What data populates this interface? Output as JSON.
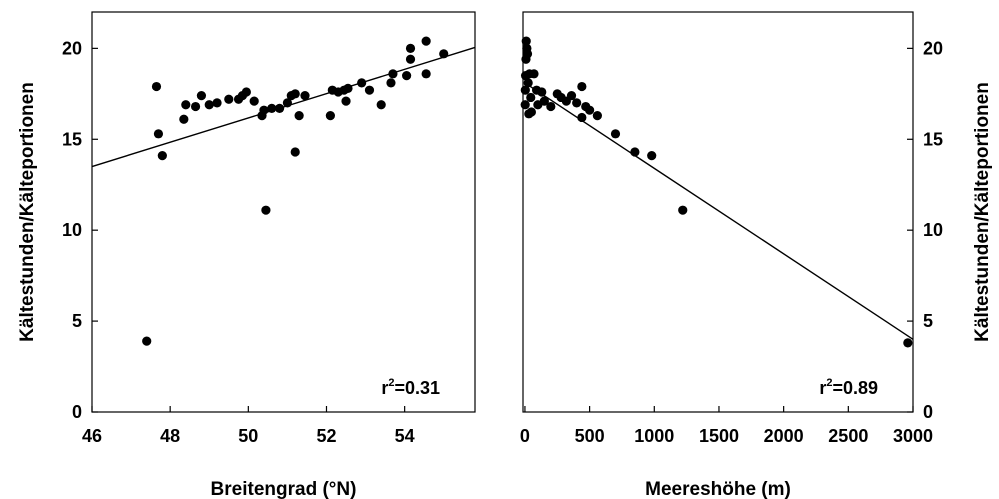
{
  "chart_data": [
    {
      "id": "left",
      "type": "scatter",
      "xlabel": "Breitengrad (°N)",
      "ylabel": "Kältestunden/Kälteportionen",
      "xlim": [
        46,
        55.8
      ],
      "ylim": [
        0,
        22
      ],
      "xticks": [
        46,
        48,
        50,
        52,
        54
      ],
      "yticks": [
        0,
        5,
        10,
        15,
        20
      ],
      "ylabel_side": "left",
      "annotation": {
        "prefix": "r",
        "sup": "2",
        "suffix": "=0.31"
      },
      "trendline": {
        "x": [
          46,
          55.8
        ],
        "y": [
          13.5,
          20.05
        ]
      },
      "points": [
        {
          "x": 47.4,
          "y": 3.9
        },
        {
          "x": 47.65,
          "y": 17.9
        },
        {
          "x": 47.7,
          "y": 15.3
        },
        {
          "x": 47.8,
          "y": 14.1
        },
        {
          "x": 48.35,
          "y": 16.1
        },
        {
          "x": 48.4,
          "y": 16.9
        },
        {
          "x": 48.65,
          "y": 16.8
        },
        {
          "x": 48.8,
          "y": 17.4
        },
        {
          "x": 49.0,
          "y": 16.9
        },
        {
          "x": 49.2,
          "y": 17.0
        },
        {
          "x": 49.5,
          "y": 17.2
        },
        {
          "x": 49.75,
          "y": 17.2
        },
        {
          "x": 49.85,
          "y": 17.4
        },
        {
          "x": 49.95,
          "y": 17.6
        },
        {
          "x": 50.15,
          "y": 17.1
        },
        {
          "x": 50.35,
          "y": 16.3
        },
        {
          "x": 50.4,
          "y": 16.6
        },
        {
          "x": 50.45,
          "y": 11.1
        },
        {
          "x": 50.6,
          "y": 16.7
        },
        {
          "x": 50.8,
          "y": 16.7
        },
        {
          "x": 51.0,
          "y": 17.0
        },
        {
          "x": 51.1,
          "y": 17.4
        },
        {
          "x": 51.2,
          "y": 17.5
        },
        {
          "x": 51.2,
          "y": 14.3
        },
        {
          "x": 51.3,
          "y": 16.3
        },
        {
          "x": 51.45,
          "y": 17.4
        },
        {
          "x": 52.1,
          "y": 16.3
        },
        {
          "x": 52.15,
          "y": 17.7
        },
        {
          "x": 52.3,
          "y": 17.6
        },
        {
          "x": 52.45,
          "y": 17.7
        },
        {
          "x": 52.5,
          "y": 17.1
        },
        {
          "x": 52.55,
          "y": 17.8
        },
        {
          "x": 52.9,
          "y": 18.1
        },
        {
          "x": 53.1,
          "y": 17.7
        },
        {
          "x": 53.4,
          "y": 16.9
        },
        {
          "x": 53.65,
          "y": 18.1
        },
        {
          "x": 53.7,
          "y": 18.6
        },
        {
          "x": 54.05,
          "y": 18.5
        },
        {
          "x": 54.15,
          "y": 19.4
        },
        {
          "x": 54.15,
          "y": 20.0
        },
        {
          "x": 54.55,
          "y": 20.4
        },
        {
          "x": 54.55,
          "y": 18.6
        },
        {
          "x": 55.0,
          "y": 19.7
        }
      ]
    },
    {
      "id": "right",
      "type": "scatter",
      "xlabel": "Meereshöhe (m)",
      "ylabel": "Kältestunden/Kälteportionen",
      "xlim": [
        -15,
        3000
      ],
      "ylim": [
        0,
        22
      ],
      "xticks": [
        0,
        500,
        1000,
        1500,
        2000,
        2500,
        3000
      ],
      "yticks": [
        0,
        5,
        10,
        15,
        20
      ],
      "ylabel_side": "right",
      "annotation": {
        "prefix": "r",
        "sup": "2",
        "suffix": "=0.89"
      },
      "trendline": {
        "x": [
          0,
          3000
        ],
        "y": [
          18.1,
          4.0
        ]
      },
      "points": [
        {
          "x": 2960,
          "y": 3.8
        },
        {
          "x": 1220,
          "y": 11.1
        },
        {
          "x": 980,
          "y": 14.1
        },
        {
          "x": 850,
          "y": 14.3
        },
        {
          "x": 700,
          "y": 15.3
        },
        {
          "x": 560,
          "y": 16.3
        },
        {
          "x": 500,
          "y": 16.6
        },
        {
          "x": 470,
          "y": 16.8
        },
        {
          "x": 440,
          "y": 16.2
        },
        {
          "x": 440,
          "y": 17.9
        },
        {
          "x": 400,
          "y": 17.0
        },
        {
          "x": 360,
          "y": 17.4
        },
        {
          "x": 320,
          "y": 17.1
        },
        {
          "x": 280,
          "y": 17.3
        },
        {
          "x": 250,
          "y": 17.5
        },
        {
          "x": 200,
          "y": 16.8
        },
        {
          "x": 150,
          "y": 17.1
        },
        {
          "x": 130,
          "y": 17.6
        },
        {
          "x": 100,
          "y": 16.9
        },
        {
          "x": 90,
          "y": 17.7
        },
        {
          "x": 70,
          "y": 18.6
        },
        {
          "x": 50,
          "y": 16.5
        },
        {
          "x": 45,
          "y": 17.3
        },
        {
          "x": 35,
          "y": 18.6
        },
        {
          "x": 30,
          "y": 16.4
        },
        {
          "x": 25,
          "y": 18.1
        },
        {
          "x": 20,
          "y": 19.7
        },
        {
          "x": 15,
          "y": 20.0
        },
        {
          "x": 10,
          "y": 20.4
        },
        {
          "x": 8,
          "y": 19.4
        },
        {
          "x": 5,
          "y": 18.5
        },
        {
          "x": 3,
          "y": 17.7
        },
        {
          "x": 2,
          "y": 16.9
        }
      ]
    }
  ]
}
